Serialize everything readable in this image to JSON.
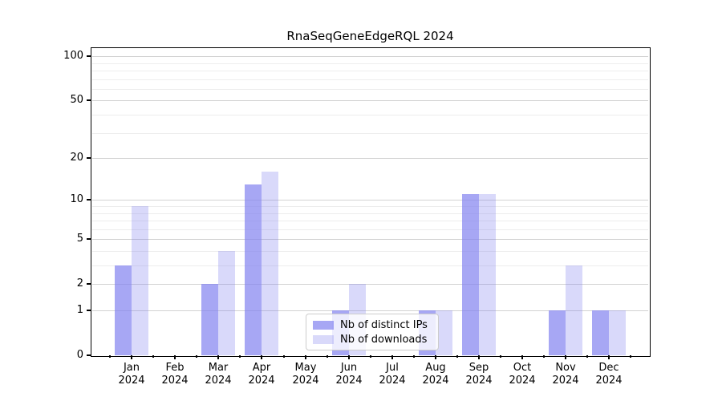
{
  "title": "RnaSeqGeneEdgeRQL 2024",
  "chart_data": {
    "type": "bar",
    "title": "RnaSeqGeneEdgeRQL 2024",
    "months": [
      "Jan",
      "Feb",
      "Mar",
      "Apr",
      "May",
      "Jun",
      "Jul",
      "Aug",
      "Sep",
      "Oct",
      "Nov",
      "Dec"
    ],
    "year": "2024",
    "series": [
      {
        "name": "Nb of distinct IPs",
        "color": "rgba(130,130,240,0.70)",
        "values": [
          3,
          0,
          2,
          13,
          0,
          1,
          0,
          1,
          11,
          0,
          1,
          1
        ]
      },
      {
        "name": "Nb of downloads",
        "color": "rgba(130,130,240,0.30)",
        "values": [
          9,
          0,
          4,
          16,
          0,
          2,
          0,
          1,
          11,
          0,
          3,
          1
        ]
      }
    ],
    "xlabel": "",
    "ylabel": "",
    "y_scale": "log10(1+x)",
    "y_ticks_labeled": [
      0,
      1,
      2,
      5,
      10,
      20,
      50,
      100
    ],
    "y_ticks_minor": [
      3,
      4,
      6,
      7,
      8,
      9,
      30,
      40,
      60,
      70,
      80,
      90
    ],
    "ylim": [
      0,
      113.6
    ],
    "grid": true,
    "legend_position": "lower center",
    "colors": {
      "major_grid": "#d2d2d2",
      "minor_grid": "#ededed",
      "axis": "#000000"
    }
  }
}
